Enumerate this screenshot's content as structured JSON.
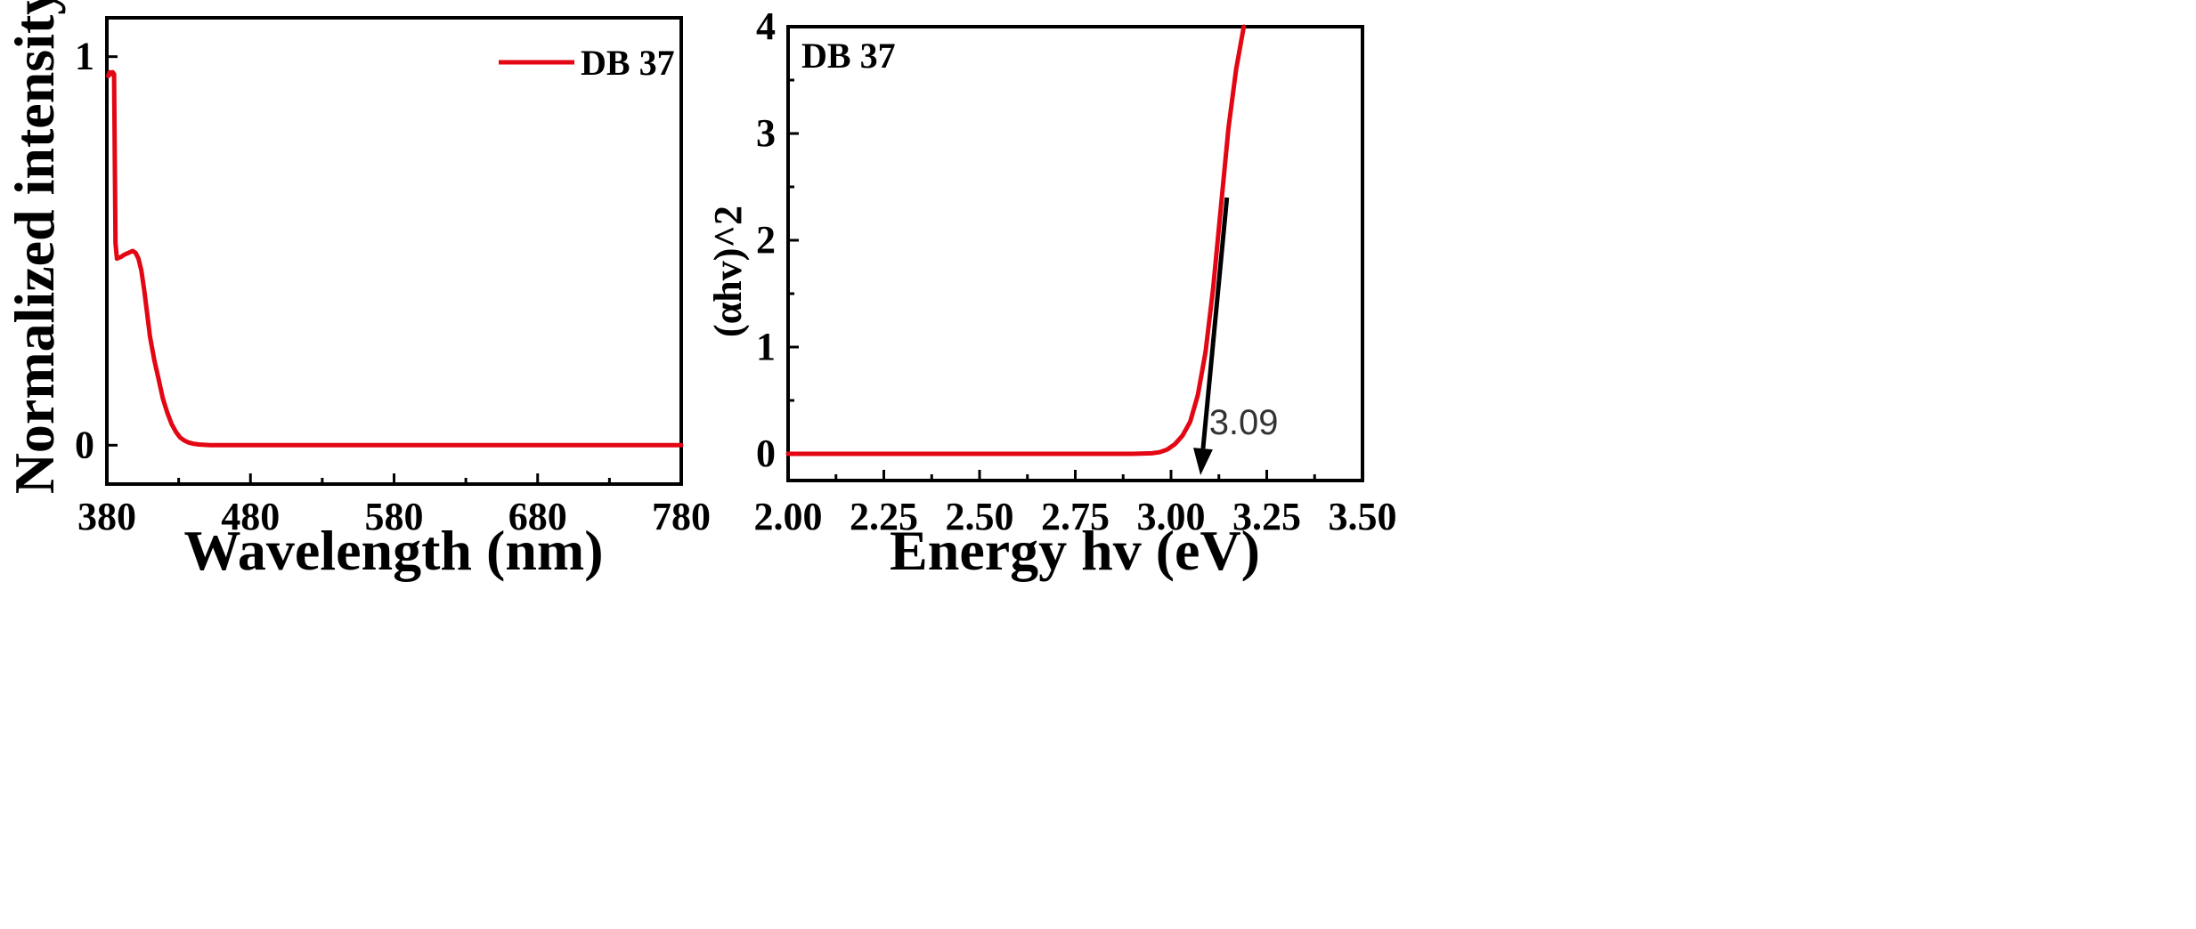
{
  "colors": {
    "series": "#e30613",
    "fit_line": "#000000"
  },
  "chart_data": [
    {
      "type": "line",
      "xlabel": "Wavelength (nm)",
      "ylabel": "Normalized intensity",
      "xlim": [
        380,
        780
      ],
      "ylim": [
        -0.1,
        1.1
      ],
      "xticks": [
        380,
        480,
        580,
        680,
        780
      ],
      "yticks": [
        0,
        1
      ],
      "grid": false,
      "legend_position": "top-right",
      "series": [
        {
          "name": "DB 37",
          "x": [
            381,
            382,
            383,
            384,
            385,
            386,
            387,
            388,
            390,
            392,
            395,
            398,
            400,
            402,
            404,
            406,
            408,
            410,
            413,
            416,
            419,
            422,
            425,
            428,
            431,
            434,
            437,
            440,
            444,
            448,
            452,
            458,
            470,
            500,
            550,
            600,
            650,
            700,
            750,
            780
          ],
          "y": [
            0.95,
            0.96,
            0.955,
            0.96,
            0.955,
            0.52,
            0.48,
            0.482,
            0.485,
            0.49,
            0.495,
            0.5,
            0.495,
            0.48,
            0.45,
            0.4,
            0.34,
            0.28,
            0.22,
            0.17,
            0.12,
            0.085,
            0.055,
            0.035,
            0.02,
            0.012,
            0.007,
            0.004,
            0.002,
            0.001,
            0.0,
            0.0,
            0.0,
            0.0,
            0.0,
            0.0,
            0.0,
            0.0,
            0.0,
            0.0
          ]
        }
      ]
    },
    {
      "type": "line",
      "xlabel": "Energy hv (eV)",
      "ylabel": "(αhv)^2",
      "xlim": [
        2.0,
        3.5
      ],
      "ylim": [
        -0.25,
        4.0
      ],
      "xticks": [
        "2.00",
        "2.25",
        "2.50",
        "2.75",
        "3.00",
        "3.25",
        "3.50"
      ],
      "yticks": [
        0,
        1,
        2,
        3,
        4
      ],
      "grid": false,
      "inset_label": "DB 37",
      "series": [
        {
          "x": [
            2.0,
            2.5,
            2.9,
            2.95,
            2.97,
            2.99,
            3.01,
            3.03,
            3.05,
            3.07,
            3.09,
            3.11,
            3.13,
            3.15,
            3.17,
            3.19
          ],
          "y": [
            0.0,
            0.0,
            0.0,
            0.005,
            0.015,
            0.04,
            0.09,
            0.17,
            0.3,
            0.55,
            0.95,
            1.55,
            2.3,
            3.05,
            3.6,
            4.0
          ]
        }
      ],
      "fit_line": {
        "x": [
          3.077,
          3.146
        ],
        "y": [
          -0.2,
          2.4
        ]
      },
      "annotations": [
        {
          "text": "3.09",
          "x": 3.09,
          "y": 0.2
        }
      ]
    }
  ]
}
